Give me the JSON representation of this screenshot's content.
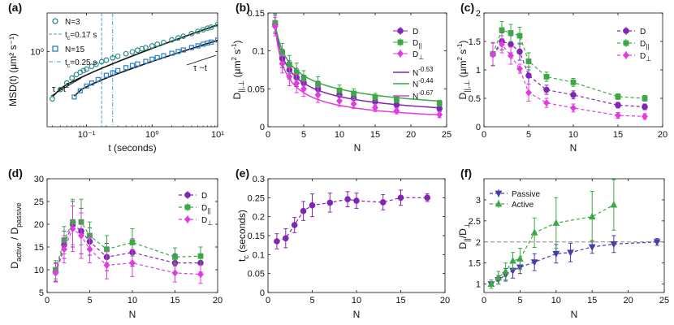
{
  "colors": {
    "purple": "#8126b4",
    "green": "#3ba845",
    "magenta": "#e13ce0",
    "teal": "#2a8f86",
    "blue": "#2b7ec2",
    "blueLine": "#4aa0cc",
    "darkBlue": "#4a3aa7",
    "gray": "#888888",
    "black": "#111111"
  },
  "chart_data": [
    {
      "panel": "(a)",
      "type": "line",
      "xscale": "log",
      "yscale": "log",
      "xlabel": "t (seconds)",
      "ylabel": "MSD(t) (μm² s⁻¹)",
      "xlim": [
        0.025,
        10
      ],
      "ylim": [
        0.03,
        6
      ],
      "x_ticks": [
        0.1,
        1,
        10
      ],
      "x_tick_labels": [
        "10⁻¹",
        "10⁰",
        "10¹"
      ],
      "y_ticks": [
        1
      ],
      "y_tick_labels": [
        "10⁰"
      ],
      "series": [
        {
          "name": "N=3",
          "marker": "circle",
          "color": "teal",
          "x": [
            0.03,
            0.04,
            0.05,
            0.06,
            0.07,
            0.08,
            0.09,
            0.1,
            0.12,
            0.14,
            0.17,
            0.2,
            0.25,
            0.3,
            0.4,
            0.5,
            0.6,
            0.7,
            0.8,
            1,
            1.2,
            1.5,
            2,
            2.5,
            3,
            4,
            5,
            6,
            7,
            8,
            10
          ],
          "y": [
            0.11,
            0.17,
            0.23,
            0.29,
            0.34,
            0.38,
            0.41,
            0.44,
            0.5,
            0.55,
            0.62,
            0.67,
            0.74,
            0.8,
            0.9,
            0.98,
            1.06,
            1.13,
            1.19,
            1.3,
            1.4,
            1.53,
            1.72,
            1.88,
            2.03,
            2.3,
            2.55,
            2.75,
            2.95,
            3.1,
            3.5
          ]
        },
        {
          "name": "N=15",
          "marker": "square",
          "color": "blue",
          "x": [
            0.065,
            0.08,
            0.1,
            0.12,
            0.15,
            0.2,
            0.25,
            0.3,
            0.4,
            0.5,
            0.6,
            0.8,
            1,
            1.2,
            1.5,
            2,
            2.5,
            3,
            4,
            5,
            6,
            7,
            8,
            10
          ],
          "y": [
            0.12,
            0.16,
            0.2,
            0.23,
            0.27,
            0.33,
            0.37,
            0.41,
            0.47,
            0.52,
            0.56,
            0.63,
            0.7,
            0.75,
            0.82,
            0.92,
            1.0,
            1.07,
            1.2,
            1.3,
            1.4,
            1.48,
            1.55,
            1.7
          ]
        }
      ],
      "fits": [
        {
          "x": [
            0.03,
            10
          ],
          "y": [
            0.12,
            3.45
          ]
        },
        {
          "x": [
            0.065,
            10
          ],
          "y": [
            0.125,
            1.68
          ]
        }
      ],
      "legend": [
        {
          "label": "N=3",
          "marker": "circle"
        },
        {
          "label": "t_c=0.17 s",
          "tc": "0.17",
          "line": "dash"
        },
        {
          "label": "N=15",
          "marker": "square"
        },
        {
          "label": "t_c=0.25 s",
          "tc": "0.25",
          "line": "dashdot"
        }
      ],
      "vlines": [
        {
          "x": 0.17,
          "style": "dash"
        },
        {
          "x": 0.25,
          "style": "dashdot"
        }
      ],
      "annotations": [
        {
          "text": "τ ~t²",
          "main": "τ ~t",
          "sup": "2"
        },
        {
          "text": "τ ~t",
          "main": "τ ~t",
          "sup": ""
        }
      ]
    },
    {
      "panel": "(b)",
      "type": "scatter",
      "xlabel": "N",
      "ylabel": "D‖,⊥ (μm² s⁻¹)",
      "xlim": [
        0,
        25
      ],
      "ylim": [
        0,
        0.15
      ],
      "x_ticks": [
        0,
        5,
        10,
        15,
        20,
        25
      ],
      "y_ticks": [
        0,
        0.05,
        0.1,
        0.15
      ],
      "y_tick_labels": [
        "0",
        "0.05",
        "0.1",
        "0.15"
      ],
      "series": [
        {
          "name": "D",
          "color": "purple",
          "marker": "circle",
          "x": [
            1,
            2,
            3,
            4,
            5,
            7,
            10,
            12,
            15,
            18,
            24
          ],
          "y": [
            0.135,
            0.09,
            0.075,
            0.065,
            0.058,
            0.05,
            0.042,
            0.038,
            0.033,
            0.029,
            0.024
          ],
          "err": [
            0.012,
            0.012,
            0.012,
            0.012,
            0.01,
            0.01,
            0.007,
            0.006,
            0.005,
            0.004,
            0.004
          ]
        },
        {
          "name": "D‖",
          "color": "green",
          "marker": "square",
          "x": [
            1,
            2,
            3,
            4,
            5,
            7,
            10,
            12,
            15,
            18,
            24
          ],
          "y": [
            0.137,
            0.098,
            0.082,
            0.072,
            0.064,
            0.056,
            0.048,
            0.044,
            0.039,
            0.036,
            0.031
          ],
          "err": [
            0.012,
            0.012,
            0.012,
            0.012,
            0.01,
            0.01,
            0.007,
            0.006,
            0.005,
            0.004,
            0.004
          ]
        },
        {
          "name": "D⊥",
          "color": "magenta",
          "marker": "diamond",
          "x": [
            1,
            2,
            3,
            4,
            5,
            7,
            10,
            12,
            15,
            18,
            24
          ],
          "y": [
            0.132,
            0.083,
            0.066,
            0.057,
            0.05,
            0.042,
            0.034,
            0.03,
            0.025,
            0.021,
            0.016
          ],
          "err": [
            0.012,
            0.012,
            0.012,
            0.012,
            0.01,
            0.01,
            0.007,
            0.006,
            0.005,
            0.004,
            0.004
          ]
        }
      ],
      "fits": [
        {
          "name": "N^-0.53",
          "color": "purple",
          "a": 0.135,
          "p": -0.53
        },
        {
          "name": "N^-0.44",
          "color": "green",
          "a": 0.137,
          "p": -0.44
        },
        {
          "name": "N^-0.67",
          "color": "magenta",
          "a": 0.132,
          "p": -0.67
        }
      ],
      "legend": [
        {
          "main": "D",
          "sub": "",
          "sup": ""
        },
        {
          "main": "D",
          "sub": "||",
          "sup": ""
        },
        {
          "main": "D",
          "sub": "⊥",
          "sup": ""
        },
        {
          "main": "N",
          "sub": "",
          "sup": "-0.53"
        },
        {
          "main": "N",
          "sub": "",
          "sup": "-0.44"
        },
        {
          "main": "N",
          "sub": "",
          "sup": "-0.67"
        }
      ]
    },
    {
      "panel": "(c)",
      "type": "scatter",
      "xlabel": "N",
      "ylabel": "D‖,⊥ (μm² s⁻¹)",
      "xlim": [
        0,
        20
      ],
      "ylim": [
        0,
        2
      ],
      "x_ticks": [
        0,
        5,
        10,
        15,
        20
      ],
      "y_ticks": [
        0,
        0.5,
        1,
        1.5,
        2
      ],
      "y_tick_labels": [
        "0",
        "0.5",
        "1",
        "1.5",
        "2"
      ],
      "series": [
        {
          "name": "D",
          "color": "purple",
          "marker": "circle",
          "x": [
            1,
            2,
            3,
            4,
            5,
            7,
            10,
            15,
            18
          ],
          "y": [
            1.28,
            1.5,
            1.45,
            1.32,
            0.9,
            0.65,
            0.56,
            0.38,
            0.35
          ],
          "err": [
            0.2,
            0.15,
            0.15,
            0.15,
            0.15,
            0.08,
            0.07,
            0.05,
            0.05
          ]
        },
        {
          "name": "D‖",
          "color": "green",
          "marker": "square",
          "x": [
            1,
            2,
            3,
            4,
            5,
            7,
            10,
            15,
            18
          ],
          "y": [
            1.28,
            1.7,
            1.65,
            1.6,
            1.15,
            0.88,
            0.78,
            0.53,
            0.5
          ],
          "err": [
            0.2,
            0.15,
            0.15,
            0.15,
            0.15,
            0.08,
            0.07,
            0.05,
            0.05
          ]
        },
        {
          "name": "D⊥",
          "color": "magenta",
          "marker": "diamond",
          "x": [
            1,
            2,
            3,
            4,
            5,
            7,
            10,
            15,
            18
          ],
          "y": [
            1.27,
            1.45,
            1.25,
            1.02,
            0.6,
            0.42,
            0.33,
            0.2,
            0.18
          ],
          "err": [
            0.2,
            0.15,
            0.15,
            0.08,
            0.15,
            0.08,
            0.07,
            0.05,
            0.05
          ]
        }
      ],
      "legend": [
        {
          "main": "D",
          "sub": ""
        },
        {
          "main": "D",
          "sub": "||"
        },
        {
          "main": "D",
          "sub": "⊥"
        }
      ]
    },
    {
      "panel": "(d)",
      "type": "scatter",
      "xlabel": "N",
      "ylabel": "D_active / D_passive",
      "xlim": [
        0,
        20
      ],
      "ylim": [
        5,
        30
      ],
      "x_ticks": [
        0,
        5,
        10,
        15,
        20
      ],
      "y_ticks": [
        5,
        10,
        15,
        20,
        25,
        30
      ],
      "y_tick_labels": [
        "5",
        "10",
        "15",
        "20",
        "25",
        "30"
      ],
      "series": [
        {
          "name": "D",
          "color": "purple",
          "marker": "circle",
          "x": [
            1,
            2,
            3,
            4,
            5,
            7,
            10,
            15,
            18
          ],
          "y": [
            9.5,
            15.5,
            20,
            18.5,
            16.2,
            12.8,
            13.8,
            11.5,
            11.5
          ],
          "err": [
            2,
            3,
            5,
            5,
            3,
            3,
            3,
            2,
            2
          ]
        },
        {
          "name": "D‖",
          "color": "green",
          "marker": "square",
          "x": [
            1,
            2,
            3,
            4,
            5,
            7,
            10,
            15,
            18
          ],
          "y": [
            10,
            16.5,
            20.5,
            20.5,
            17.5,
            14.5,
            16,
            12.8,
            13
          ],
          "err": [
            2,
            3,
            5,
            5,
            3,
            3,
            3,
            2,
            2
          ]
        },
        {
          "name": "D⊥",
          "color": "magenta",
          "marker": "diamond",
          "x": [
            1,
            2,
            3,
            4,
            5,
            7,
            10,
            15,
            18
          ],
          "y": [
            9.3,
            14.5,
            19,
            17.5,
            14.5,
            11,
            11.5,
            9.3,
            9
          ],
          "err": [
            2,
            3,
            5,
            5,
            3,
            3,
            3,
            2,
            2
          ]
        }
      ],
      "legend": [
        {
          "main": "D",
          "sub": ""
        },
        {
          "main": "D",
          "sub": "||"
        },
        {
          "main": "D",
          "sub": "⊥"
        }
      ]
    },
    {
      "panel": "(e)",
      "type": "scatter",
      "xlabel": "N",
      "ylabel": "t_c (seconds)",
      "xlim": [
        0,
        20
      ],
      "ylim": [
        0,
        0.3
      ],
      "x_ticks": [
        0,
        5,
        10,
        15,
        20
      ],
      "y_ticks": [
        0,
        0.05,
        0.1,
        0.15,
        0.2,
        0.25,
        0.3
      ],
      "y_tick_labels": [
        "0",
        "0.05",
        "0.1",
        "0.15",
        "0.2",
        "0.25",
        "0.3"
      ],
      "series": [
        {
          "name": "t_c",
          "color": "purple",
          "marker": "circle",
          "x": [
            1,
            2,
            3,
            4,
            5,
            7,
            9,
            10,
            13,
            15,
            18
          ],
          "y": [
            0.135,
            0.143,
            0.178,
            0.215,
            0.23,
            0.237,
            0.246,
            0.242,
            0.238,
            0.25,
            0.25
          ],
          "err": [
            0.02,
            0.025,
            0.02,
            0.025,
            0.03,
            0.025,
            0.02,
            0.02,
            0.02,
            0.02,
            0.01
          ]
        }
      ]
    },
    {
      "panel": "(f)",
      "type": "scatter",
      "xlabel": "N",
      "ylabel": "D‖/D⊥",
      "xlim": [
        0,
        25
      ],
      "ylim": [
        0.8,
        3.5
      ],
      "x_ticks": [
        0,
        5,
        10,
        15,
        20,
        25
      ],
      "y_ticks": [
        1,
        1.5,
        2,
        2.5,
        3
      ],
      "y_tick_labels": [
        "1",
        "1.5",
        "2",
        "2.5",
        "3"
      ],
      "hline": 2,
      "series": [
        {
          "name": "Passive",
          "color": "darkBlue",
          "marker": "triangle-down",
          "x": [
            1,
            2,
            3,
            4,
            5,
            7,
            10,
            12,
            15,
            18,
            24
          ],
          "y": [
            1.0,
            1.1,
            1.22,
            1.32,
            1.4,
            1.52,
            1.72,
            1.75,
            1.88,
            1.95,
            2.0
          ],
          "err": [
            0.05,
            0.1,
            0.15,
            0.18,
            0.15,
            0.2,
            0.22,
            0.22,
            0.15,
            0.2,
            0.08
          ]
        },
        {
          "name": "Active",
          "color": "green",
          "marker": "triangle-up",
          "x": [
            1,
            2,
            3,
            4,
            5,
            7,
            10,
            15,
            18
          ],
          "y": [
            1.0,
            1.15,
            1.3,
            1.55,
            1.6,
            2.22,
            2.45,
            2.6,
            2.88
          ],
          "err": [
            0.1,
            0.15,
            0.2,
            0.2,
            0.25,
            0.35,
            0.6,
            0.6,
            0.6
          ]
        }
      ],
      "legend": [
        {
          "label": "Passive"
        },
        {
          "label": "Active"
        }
      ]
    }
  ]
}
